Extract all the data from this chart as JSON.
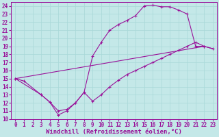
{
  "xlabel": "Windchill (Refroidissement éolien,°C)",
  "xlim": [
    -0.5,
    23.5
  ],
  "ylim": [
    10,
    24.5
  ],
  "xticks": [
    0,
    1,
    2,
    3,
    4,
    5,
    6,
    7,
    8,
    9,
    10,
    11,
    12,
    13,
    14,
    15,
    16,
    17,
    18,
    19,
    20,
    21,
    22,
    23
  ],
  "yticks": [
    10,
    11,
    12,
    13,
    14,
    15,
    16,
    17,
    18,
    19,
    20,
    21,
    22,
    23,
    24
  ],
  "background_color": "#c4e8e8",
  "line_color": "#991199",
  "grid_color": "#a8d8d8",
  "line1_x": [
    0,
    1,
    3,
    4,
    5,
    6,
    7,
    8,
    9,
    10,
    11,
    12,
    13,
    14,
    15,
    16,
    17,
    18,
    19,
    20,
    21,
    22
  ],
  "line1_y": [
    15,
    14.7,
    13,
    12.1,
    10.5,
    11.0,
    12.0,
    13.3,
    17.8,
    19.5,
    21.0,
    21.7,
    22.2,
    22.8,
    24.0,
    24.1,
    23.9,
    23.9,
    23.5,
    23.0,
    19.0,
    19.0
  ],
  "line2_x": [
    0,
    3,
    4,
    5,
    6,
    7,
    8,
    9,
    10,
    11,
    12,
    13,
    14,
    15,
    16,
    17,
    18,
    19,
    20,
    21,
    22,
    23
  ],
  "line2_y": [
    15,
    13,
    12.1,
    11.0,
    11.2,
    12.0,
    13.3,
    12.2,
    13.0,
    14.0,
    14.8,
    15.5,
    16.0,
    16.5,
    17.0,
    17.5,
    18.0,
    18.5,
    19.0,
    19.5,
    19.0,
    18.7
  ],
  "line3_x": [
    0,
    22,
    23
  ],
  "line3_y": [
    15,
    19.0,
    18.7
  ],
  "tick_fontsize": 5.5,
  "label_fontsize": 6.5
}
